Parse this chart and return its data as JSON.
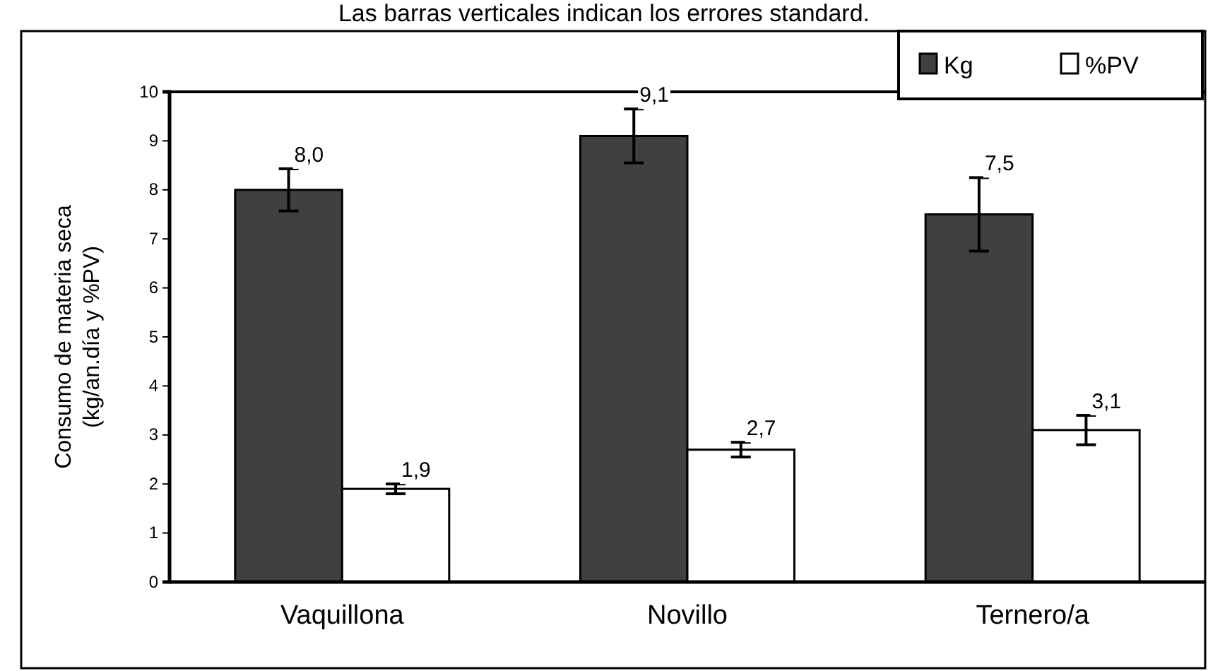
{
  "chart_data": {
    "type": "bar",
    "title": "Las barras verticales indican los errores standard.",
    "ylabel": "Consumo de materia seca\n(kg/an.día y %PV)",
    "categories": [
      "Vaquillona",
      "Novillo",
      "Ternero/a"
    ],
    "series": [
      {
        "name": "Kg",
        "color": "#404040",
        "values": [
          8.0,
          9.1,
          7.5
        ],
        "errors": [
          0.43,
          0.55,
          0.75
        ],
        "value_labels": [
          "8,0",
          "9,1",
          "7,5"
        ]
      },
      {
        "name": "%PV",
        "color": "#ffffff",
        "values": [
          1.9,
          2.7,
          3.1
        ],
        "errors": [
          0.1,
          0.15,
          0.3
        ],
        "value_labels": [
          "1,9",
          "2,7",
          "3,1"
        ]
      }
    ],
    "ylim": [
      0,
      10
    ],
    "yticks": [
      0,
      1,
      2,
      3,
      4,
      5,
      6,
      7,
      8,
      9,
      10
    ],
    "legend": "top right"
  }
}
